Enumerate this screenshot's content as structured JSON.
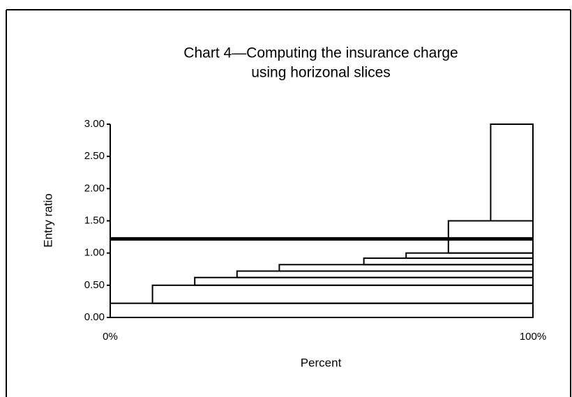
{
  "chart_data": {
    "type": "slices",
    "title": [
      "Chart 4—Computing the insurance charge",
      "using horizonal slices"
    ],
    "x_label": "Percent",
    "y_label": "Entry ratio",
    "xlim": [
      0,
      100
    ],
    "ylim": [
      0,
      3
    ],
    "xticks": [
      {
        "value": 0,
        "label": "0%"
      },
      {
        "value": 100,
        "label": "100%"
      }
    ],
    "yticks": [
      {
        "value": 0,
        "label": "0.00"
      },
      {
        "value": 0.5,
        "label": "0.50"
      },
      {
        "value": 1,
        "label": "1.00"
      },
      {
        "value": 1.5,
        "label": "1.50"
      },
      {
        "value": 2,
        "label": "2.00"
      },
      {
        "value": 2.5,
        "label": "2.50"
      },
      {
        "value": 3,
        "label": "3.00"
      }
    ],
    "slices": [
      {
        "from": 0,
        "bottom": 0,
        "top": 0.22
      },
      {
        "from": 10,
        "bottom": 0.22,
        "top": 0.5
      },
      {
        "from": 20,
        "bottom": 0.5,
        "top": 0.62
      },
      {
        "from": 30,
        "bottom": 0.62,
        "top": 0.72
      },
      {
        "from": 40,
        "bottom": 0.72,
        "top": 0.82
      },
      {
        "from": 60,
        "bottom": 0.82,
        "top": 0.92
      },
      {
        "from": 70,
        "bottom": 0.92,
        "top": 1
      },
      {
        "from": 80,
        "bottom": 1,
        "top": 1.5
      },
      {
        "from": 90,
        "bottom": 1.5,
        "top": 3
      }
    ],
    "reference_line": 1.22,
    "color": "#000000"
  }
}
